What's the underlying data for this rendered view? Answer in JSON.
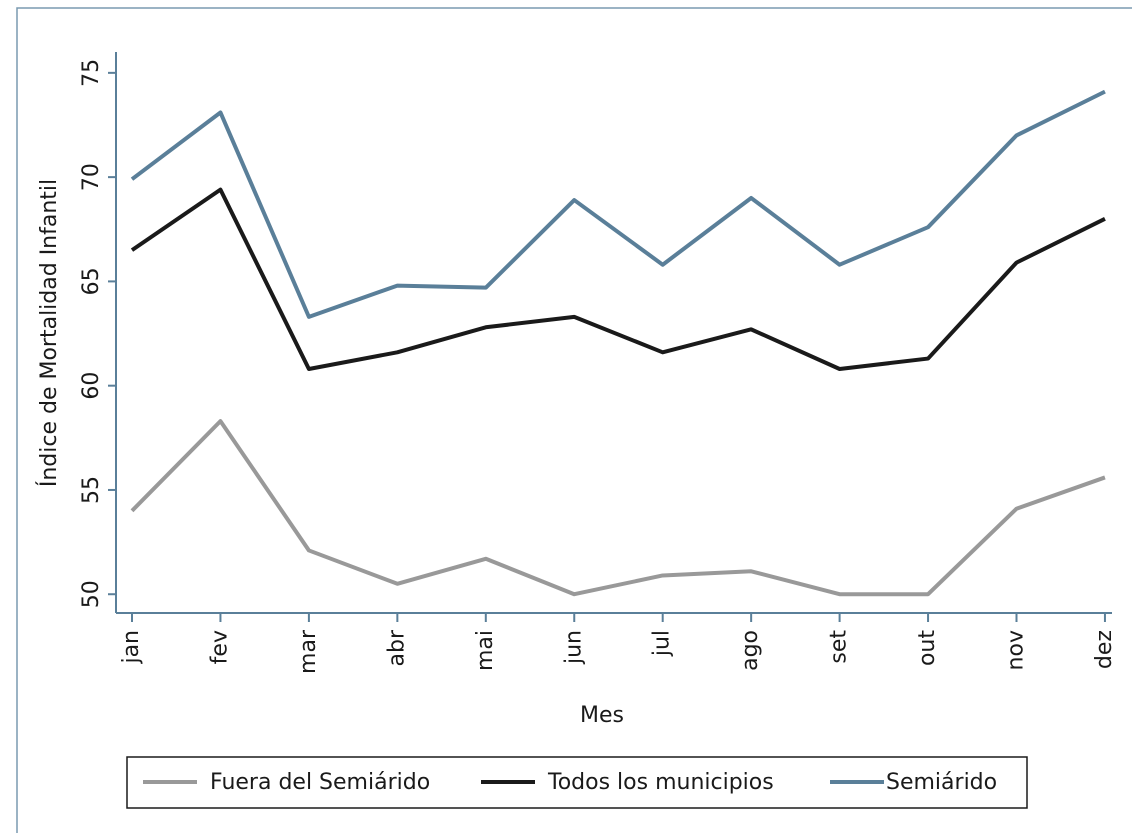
{
  "chart_data": {
    "type": "line",
    "xlabel": "Mes",
    "ylabel": "Índice de Mortalidad Infantil",
    "categories": [
      "jan",
      "fev",
      "mar",
      "abr",
      "mai",
      "jun",
      "jul",
      "ago",
      "set",
      "out",
      "nov",
      "dez"
    ],
    "series": [
      {
        "name": "Fuera del Semiárido",
        "color": "#999999",
        "values": [
          54.0,
          58.3,
          52.1,
          50.5,
          51.7,
          50.0,
          50.9,
          51.1,
          50.0,
          50.0,
          54.1,
          55.6
        ]
      },
      {
        "name": "Todos los municipios",
        "color": "#1a1a1a",
        "values": [
          66.5,
          69.4,
          60.8,
          61.6,
          62.8,
          63.3,
          61.6,
          62.7,
          60.8,
          61.3,
          65.9,
          68.0
        ]
      },
      {
        "name": "Semiárido",
        "color": "#5a7f99",
        "values": [
          69.9,
          73.1,
          63.3,
          64.8,
          64.7,
          68.9,
          65.8,
          69.0,
          65.8,
          67.6,
          72.0,
          74.1
        ]
      }
    ],
    "ylim": [
      49.1,
      76.0
    ],
    "yticks": [
      50,
      55,
      60,
      65,
      70,
      75
    ],
    "grid": false,
    "legend": "bottom"
  }
}
